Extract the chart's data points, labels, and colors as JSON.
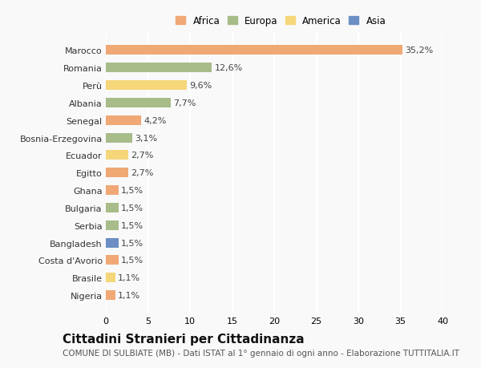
{
  "categories": [
    "Marocco",
    "Romania",
    "Perù",
    "Albania",
    "Senegal",
    "Bosnia-Erzegovina",
    "Ecuador",
    "Egitto",
    "Ghana",
    "Bulgaria",
    "Serbia",
    "Bangladesh",
    "Costa d'Avorio",
    "Brasile",
    "Nigeria"
  ],
  "values": [
    35.2,
    12.6,
    9.6,
    7.7,
    4.2,
    3.1,
    2.7,
    2.7,
    1.5,
    1.5,
    1.5,
    1.5,
    1.5,
    1.1,
    1.1
  ],
  "labels": [
    "35,2%",
    "12,6%",
    "9,6%",
    "7,7%",
    "4,2%",
    "3,1%",
    "2,7%",
    "2,7%",
    "1,5%",
    "1,5%",
    "1,5%",
    "1,5%",
    "1,5%",
    "1,1%",
    "1,1%"
  ],
  "colors": [
    "#f0a875",
    "#a8bc8a",
    "#f5d77a",
    "#a8bc8a",
    "#f0a875",
    "#a8bc8a",
    "#f5d77a",
    "#f0a875",
    "#f0a875",
    "#a8bc8a",
    "#a8bc8a",
    "#6b8fc4",
    "#f0a875",
    "#f5d77a",
    "#f0a875"
  ],
  "legend_labels": [
    "Africa",
    "Europa",
    "America",
    "Asia"
  ],
  "legend_colors": [
    "#f0a875",
    "#a8bc8a",
    "#f5d77a",
    "#6b8fc4"
  ],
  "title": "Cittadini Stranieri per Cittadinanza",
  "subtitle": "COMUNE DI SULBIATE (MB) - Dati ISTAT al 1° gennaio di ogni anno - Elaborazione TUTTITALIA.IT",
  "xlim": [
    0,
    40
  ],
  "xticks": [
    0,
    5,
    10,
    15,
    20,
    25,
    30,
    35,
    40
  ],
  "background_color": "#f9f9f9",
  "grid_color": "#ffffff",
  "title_fontsize": 11,
  "subtitle_fontsize": 7.5,
  "label_fontsize": 8,
  "tick_fontsize": 8,
  "bar_height": 0.55
}
